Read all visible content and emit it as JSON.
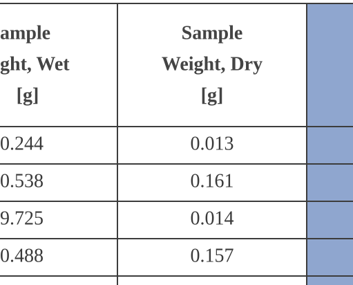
{
  "table": {
    "headers": [
      [
        "ample",
        "ght, Wet",
        "[g]"
      ],
      [
        "Sample",
        "Weight, Dry",
        "[g]"
      ]
    ],
    "rows": [
      [
        "0.244",
        "0.013"
      ],
      [
        "0.538",
        "0.161"
      ],
      [
        "9.725",
        "0.014"
      ],
      [
        "0.488",
        "0.157"
      ]
    ]
  }
}
